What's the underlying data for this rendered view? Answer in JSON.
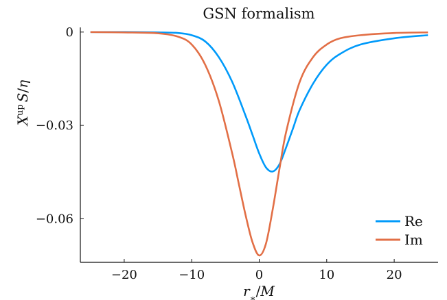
{
  "chart_data": {
    "type": "line",
    "title": "GSN formalism",
    "xlabel": "r_*/M",
    "ylabel": "X^up S/η",
    "xlim": [
      -26.5,
      26.5
    ],
    "ylim": [
      -0.074,
      0.0015
    ],
    "xticks": [
      -20,
      -10,
      0,
      10,
      20
    ],
    "xtick_labels": [
      "−20",
      "−10",
      "0",
      "10",
      "20"
    ],
    "yticks": [
      0,
      -0.03,
      -0.06
    ],
    "ytick_labels": [
      "0",
      "−0.03",
      "−0.06"
    ],
    "grid": false,
    "legend_position": "bottom-right",
    "series": [
      {
        "name": "Re",
        "color": "#009AFA",
        "x": [
          -25,
          -20,
          -15,
          -12,
          -10,
          -8,
          -6,
          -4,
          -2,
          -1,
          0,
          1,
          2,
          3,
          4,
          5,
          6,
          8,
          10,
          12,
          15,
          20,
          25
        ],
        "y": [
          0.0,
          0.0,
          -0.0001,
          -0.0003,
          -0.001,
          -0.003,
          -0.008,
          -0.016,
          -0.027,
          -0.033,
          -0.039,
          -0.0435,
          -0.0448,
          -0.0425,
          -0.037,
          -0.031,
          -0.025,
          -0.0165,
          -0.0105,
          -0.007,
          -0.004,
          -0.002,
          -0.001
        ]
      },
      {
        "name": "Im",
        "color": "#E26F46",
        "x": [
          -25,
          -20,
          -15,
          -12,
          -10,
          -8,
          -6,
          -4,
          -3,
          -2,
          -1,
          0,
          1,
          2,
          3,
          4,
          6,
          8,
          10,
          12,
          15,
          20,
          25
        ],
        "y": [
          0.0,
          -0.0001,
          -0.0004,
          -0.0015,
          -0.004,
          -0.0105,
          -0.022,
          -0.039,
          -0.049,
          -0.059,
          -0.0675,
          -0.0718,
          -0.068,
          -0.057,
          -0.044,
          -0.032,
          -0.016,
          -0.008,
          -0.004,
          -0.002,
          -0.001,
          -0.0003,
          -0.0001
        ]
      }
    ]
  }
}
